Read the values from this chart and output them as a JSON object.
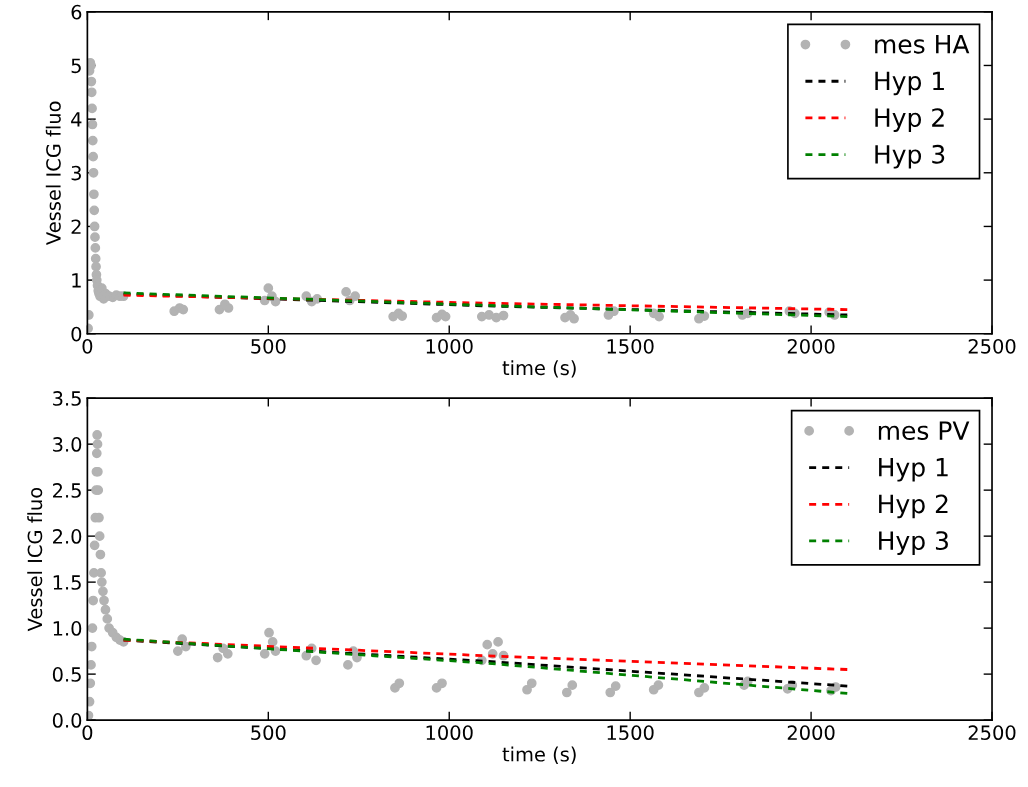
{
  "chart_data": [
    {
      "type": "scatter",
      "xlabel": "time (s)",
      "ylabel": "Vessel ICG fluo",
      "xlim": [
        0,
        2500
      ],
      "ylim": [
        0,
        6
      ],
      "xticks": [
        0,
        500,
        1000,
        1500,
        2000,
        2500
      ],
      "yticks": [
        0,
        1,
        2,
        3,
        4,
        5,
        6
      ],
      "legend": "top right",
      "grid": false,
      "series": [
        {
          "name": "mes HA",
          "marker": "circle",
          "color": "#b3b3b3",
          "x": [
            2,
            4,
            6,
            8,
            10,
            11,
            12,
            13,
            14,
            15,
            16,
            17,
            18,
            19,
            20,
            21,
            22,
            23,
            24,
            25,
            26,
            28,
            30,
            32,
            35,
            40,
            45,
            50,
            60,
            70,
            80,
            90,
            100,
            240,
            255,
            265,
            365,
            380,
            390,
            490,
            500,
            510,
            520,
            605,
            620,
            635,
            715,
            725,
            740,
            845,
            860,
            870,
            965,
            980,
            990,
            1090,
            1110,
            1130,
            1150,
            1320,
            1335,
            1345,
            1440,
            1455,
            1565,
            1580,
            1690,
            1705,
            1810,
            1825,
            1940,
            1955,
            2050,
            2065
          ],
          "values": [
            0.1,
            0.35,
            4.9,
            5.05,
            5.0,
            4.7,
            4.5,
            4.2,
            3.9,
            3.6,
            3.3,
            3.0,
            2.6,
            2.3,
            2.0,
            1.8,
            1.6,
            1.4,
            1.25,
            1.1,
            1.0,
            0.9,
            0.8,
            0.75,
            0.7,
            0.85,
            0.65,
            0.75,
            0.7,
            0.68,
            0.72,
            0.7,
            0.7,
            0.42,
            0.48,
            0.45,
            0.45,
            0.55,
            0.48,
            0.62,
            0.85,
            0.7,
            0.6,
            0.7,
            0.6,
            0.65,
            0.78,
            0.62,
            0.7,
            0.32,
            0.38,
            0.33,
            0.3,
            0.36,
            0.32,
            0.32,
            0.35,
            0.3,
            0.34,
            0.3,
            0.35,
            0.28,
            0.35,
            0.42,
            0.38,
            0.32,
            0.28,
            0.33,
            0.35,
            0.38,
            0.42,
            0.38,
            0.4,
            0.35
          ]
        },
        {
          "name": "Hyp 1",
          "type": "line",
          "line_style": "dashed",
          "color": "#000000",
          "x": [
            100,
            1100,
            2100
          ],
          "values": [
            0.74,
            0.52,
            0.35
          ]
        },
        {
          "name": "Hyp 2",
          "type": "line",
          "line_style": "dashed",
          "color": "#ff0000",
          "x": [
            100,
            1100,
            2100
          ],
          "values": [
            0.72,
            0.57,
            0.45
          ]
        },
        {
          "name": "Hyp 3",
          "type": "line",
          "line_style": "dashed",
          "color": "#008000",
          "x": [
            100,
            1100,
            2100
          ],
          "values": [
            0.76,
            0.53,
            0.32
          ]
        }
      ]
    },
    {
      "type": "scatter",
      "xlabel": "time (s)",
      "ylabel": "Vessel ICG fluo",
      "xlim": [
        0,
        2500
      ],
      "ylim": [
        0,
        3.5
      ],
      "xticks": [
        0,
        500,
        1000,
        1500,
        2000,
        2500
      ],
      "yticks": [
        {
          "value": 0,
          "label": "0.0"
        },
        {
          "value": 0.5,
          "label": "0.5"
        },
        {
          "value": 1,
          "label": "1.0"
        },
        {
          "value": 1.5,
          "label": "1.5"
        },
        {
          "value": 2,
          "label": "2.0"
        },
        {
          "value": 2.5,
          "label": "2.5"
        },
        {
          "value": 3,
          "label": "3.0"
        },
        {
          "value": 3.5,
          "label": "3.5"
        }
      ],
      "legend": "top right",
      "grid": false,
      "series": [
        {
          "name": "mes PV",
          "marker": "circle",
          "color": "#b3b3b3",
          "x": [
            3,
            6,
            8,
            10,
            12,
            14,
            16,
            18,
            20,
            22,
            24,
            25,
            26,
            27,
            28,
            29,
            30,
            32,
            34,
            36,
            38,
            40,
            43,
            46,
            50,
            55,
            60,
            70,
            80,
            90,
            100,
            250,
            262,
            272,
            360,
            375,
            388,
            490,
            502,
            512,
            520,
            605,
            620,
            632,
            720,
            735,
            745,
            850,
            862,
            965,
            980,
            1090,
            1105,
            1120,
            1135,
            1150,
            1215,
            1228,
            1325,
            1340,
            1445,
            1460,
            1565,
            1578,
            1690,
            1705,
            1815,
            1825,
            1935,
            1948,
            2055,
            2068
          ],
          "values": [
            0.05,
            0.2,
            0.4,
            0.6,
            0.8,
            1.0,
            1.3,
            1.6,
            1.9,
            2.2,
            2.5,
            2.7,
            2.9,
            3.1,
            3.0,
            2.7,
            2.5,
            2.2,
            2.0,
            1.8,
            1.6,
            1.5,
            1.4,
            1.3,
            1.2,
            1.1,
            1.0,
            0.95,
            0.9,
            0.87,
            0.85,
            0.75,
            0.88,
            0.8,
            0.68,
            0.78,
            0.72,
            0.72,
            0.95,
            0.85,
            0.75,
            0.7,
            0.78,
            0.65,
            0.6,
            0.75,
            0.68,
            0.35,
            0.4,
            0.35,
            0.4,
            0.65,
            0.82,
            0.72,
            0.85,
            0.7,
            0.33,
            0.4,
            0.3,
            0.38,
            0.3,
            0.37,
            0.33,
            0.38,
            0.3,
            0.35,
            0.38,
            0.42,
            0.34,
            0.38,
            0.32,
            0.36
          ]
        },
        {
          "name": "Hyp 1",
          "type": "line",
          "line_style": "dashed",
          "color": "#000000",
          "x": [
            100,
            1100,
            2100
          ],
          "values": [
            0.87,
            0.64,
            0.37
          ]
        },
        {
          "name": "Hyp 2",
          "type": "line",
          "line_style": "dashed",
          "color": "#ff0000",
          "x": [
            100,
            1100,
            2100
          ],
          "values": [
            0.87,
            0.7,
            0.55
          ]
        },
        {
          "name": "Hyp 3",
          "type": "line",
          "line_style": "dashed",
          "color": "#008000",
          "x": [
            100,
            1100,
            2100
          ],
          "values": [
            0.88,
            0.62,
            0.29
          ]
        }
      ]
    }
  ]
}
